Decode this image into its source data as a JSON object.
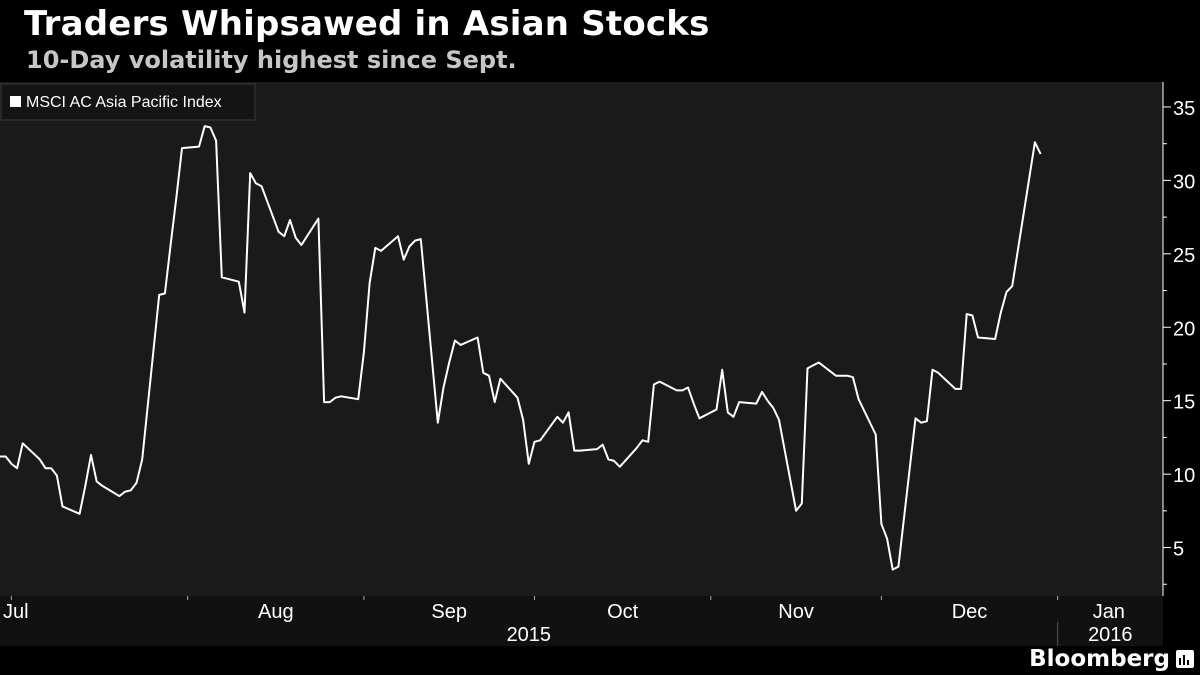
{
  "header": {
    "title": "Traders Whipsawed in Asian Stocks",
    "subtitle": "10-Day volatility highest since Sept."
  },
  "brand": {
    "name": "Bloomberg",
    "icon": "bloomberg-chart-icon"
  },
  "colors": {
    "background": "#000000",
    "plot_background": "#1a1a1a",
    "line": "#ffffff",
    "axis_text": "#ffffff",
    "subtitle": "#c6c6c6"
  },
  "chart_data": {
    "type": "line",
    "title": "Traders Whipsawed in Asian Stocks",
    "subtitle": "10-Day volatility highest since Sept.",
    "legend": {
      "position": "top-left",
      "entries": [
        "MSCI AC Asia Pacific Index"
      ]
    },
    "y_axis": {
      "side": "right",
      "range": [
        1.7,
        36.7
      ],
      "ticks": [
        5,
        10,
        15,
        20,
        25,
        30,
        35
      ]
    },
    "x_axis": {
      "months": [
        "Jul",
        "Aug",
        "Sep",
        "Oct",
        "Nov",
        "Dec",
        "Jan"
      ],
      "years": [
        "2015",
        "2016"
      ],
      "range": [
        "2015-06-29",
        "2016-01-19"
      ]
    },
    "grid": false,
    "series": [
      {
        "name": "MSCI AC Asia Pacific Index",
        "points": [
          [
            "2015-06-29",
            11.2
          ],
          [
            "2015-06-30",
            11.2
          ],
          [
            "2015-07-01",
            10.7
          ],
          [
            "2015-07-02",
            10.4
          ],
          [
            "2015-07-03",
            12.1
          ],
          [
            "2015-07-06",
            11.0
          ],
          [
            "2015-07-07",
            10.4
          ],
          [
            "2015-07-08",
            10.4
          ],
          [
            "2015-07-09",
            9.9
          ],
          [
            "2015-07-10",
            7.8
          ],
          [
            "2015-07-13",
            7.3
          ],
          [
            "2015-07-14",
            9.2
          ],
          [
            "2015-07-15",
            11.3
          ],
          [
            "2015-07-16",
            9.5
          ],
          [
            "2015-07-17",
            9.2
          ],
          [
            "2015-07-20",
            8.5
          ],
          [
            "2015-07-21",
            8.8
          ],
          [
            "2015-07-22",
            8.9
          ],
          [
            "2015-07-23",
            9.4
          ],
          [
            "2015-07-24",
            11.0
          ],
          [
            "2015-07-27",
            22.2
          ],
          [
            "2015-07-28",
            22.3
          ],
          [
            "2015-07-29",
            25.6
          ],
          [
            "2015-07-30",
            28.8
          ],
          [
            "2015-07-31",
            32.2
          ],
          [
            "2015-08-03",
            32.3
          ],
          [
            "2015-08-04",
            33.7
          ],
          [
            "2015-08-05",
            33.6
          ],
          [
            "2015-08-06",
            32.7
          ],
          [
            "2015-08-07",
            23.4
          ],
          [
            "2015-08-10",
            23.1
          ],
          [
            "2015-08-11",
            21.0
          ],
          [
            "2015-08-12",
            30.5
          ],
          [
            "2015-08-13",
            29.8
          ],
          [
            "2015-08-14",
            29.6
          ],
          [
            "2015-08-17",
            26.5
          ],
          [
            "2015-08-18",
            26.2
          ],
          [
            "2015-08-19",
            27.3
          ],
          [
            "2015-08-20",
            26.1
          ],
          [
            "2015-08-21",
            25.6
          ],
          [
            "2015-08-24",
            27.4
          ],
          [
            "2015-08-25",
            14.9
          ],
          [
            "2015-08-26",
            14.9
          ],
          [
            "2015-08-27",
            15.2
          ],
          [
            "2015-08-28",
            15.3
          ],
          [
            "2015-08-31",
            15.1
          ],
          [
            "2015-09-01",
            18.3
          ],
          [
            "2015-09-02",
            23.0
          ],
          [
            "2015-09-03",
            25.4
          ],
          [
            "2015-09-04",
            25.2
          ],
          [
            "2015-09-07",
            26.2
          ],
          [
            "2015-09-08",
            24.6
          ],
          [
            "2015-09-09",
            25.5
          ],
          [
            "2015-09-10",
            25.9
          ],
          [
            "2015-09-11",
            26.0
          ],
          [
            "2015-09-14",
            13.5
          ],
          [
            "2015-09-15",
            15.9
          ],
          [
            "2015-09-16",
            17.6
          ],
          [
            "2015-09-17",
            19.1
          ],
          [
            "2015-09-18",
            18.8
          ],
          [
            "2015-09-21",
            19.3
          ],
          [
            "2015-09-22",
            16.9
          ],
          [
            "2015-09-23",
            16.7
          ],
          [
            "2015-09-24",
            14.9
          ],
          [
            "2015-09-25",
            16.5
          ],
          [
            "2015-09-28",
            15.2
          ],
          [
            "2015-09-29",
            13.7
          ],
          [
            "2015-09-30",
            10.7
          ],
          [
            "2015-10-01",
            12.2
          ],
          [
            "2015-10-02",
            12.3
          ],
          [
            "2015-10-05",
            13.9
          ],
          [
            "2015-10-06",
            13.5
          ],
          [
            "2015-10-07",
            14.2
          ],
          [
            "2015-10-08",
            11.6
          ],
          [
            "2015-10-09",
            11.6
          ],
          [
            "2015-10-12",
            11.7
          ],
          [
            "2015-10-13",
            12.0
          ],
          [
            "2015-10-14",
            11.0
          ],
          [
            "2015-10-15",
            10.9
          ],
          [
            "2015-10-16",
            10.5
          ],
          [
            "2015-10-19",
            11.8
          ],
          [
            "2015-10-20",
            12.3
          ],
          [
            "2015-10-21",
            12.2
          ],
          [
            "2015-10-22",
            16.1
          ],
          [
            "2015-10-23",
            16.3
          ],
          [
            "2015-10-26",
            15.7
          ],
          [
            "2015-10-27",
            15.7
          ],
          [
            "2015-10-28",
            15.9
          ],
          [
            "2015-10-29",
            14.8
          ],
          [
            "2015-10-30",
            13.8
          ],
          [
            "2015-11-02",
            14.4
          ],
          [
            "2015-11-03",
            17.1
          ],
          [
            "2015-11-04",
            14.2
          ],
          [
            "2015-11-05",
            13.9
          ],
          [
            "2015-11-06",
            14.9
          ],
          [
            "2015-11-09",
            14.8
          ],
          [
            "2015-11-10",
            15.6
          ],
          [
            "2015-11-11",
            15.0
          ],
          [
            "2015-11-12",
            14.5
          ],
          [
            "2015-11-13",
            13.7
          ],
          [
            "2015-11-16",
            7.5
          ],
          [
            "2015-11-17",
            8.0
          ],
          [
            "2015-11-18",
            17.2
          ],
          [
            "2015-11-19",
            17.4
          ],
          [
            "2015-11-20",
            17.6
          ],
          [
            "2015-11-23",
            16.7
          ],
          [
            "2015-11-24",
            16.7
          ],
          [
            "2015-11-25",
            16.7
          ],
          [
            "2015-11-26",
            16.6
          ],
          [
            "2015-11-27",
            15.1
          ],
          [
            "2015-11-30",
            12.7
          ],
          [
            "2015-12-01",
            6.6
          ],
          [
            "2015-12-02",
            5.6
          ],
          [
            "2015-12-03",
            3.5
          ],
          [
            "2015-12-04",
            3.7
          ],
          [
            "2015-12-07",
            13.8
          ],
          [
            "2015-12-08",
            13.5
          ],
          [
            "2015-12-09",
            13.6
          ],
          [
            "2015-12-10",
            17.1
          ],
          [
            "2015-12-11",
            16.9
          ],
          [
            "2015-12-14",
            15.8
          ],
          [
            "2015-12-15",
            15.8
          ],
          [
            "2015-12-16",
            20.9
          ],
          [
            "2015-12-17",
            20.8
          ],
          [
            "2015-12-18",
            19.3
          ],
          [
            "2015-12-21",
            19.2
          ],
          [
            "2015-12-22",
            21.0
          ],
          [
            "2015-12-23",
            22.4
          ],
          [
            "2015-12-24",
            22.8
          ],
          [
            "2015-12-28",
            32.6
          ],
          [
            "2015-12-29",
            31.8
          ]
        ]
      }
    ]
  }
}
